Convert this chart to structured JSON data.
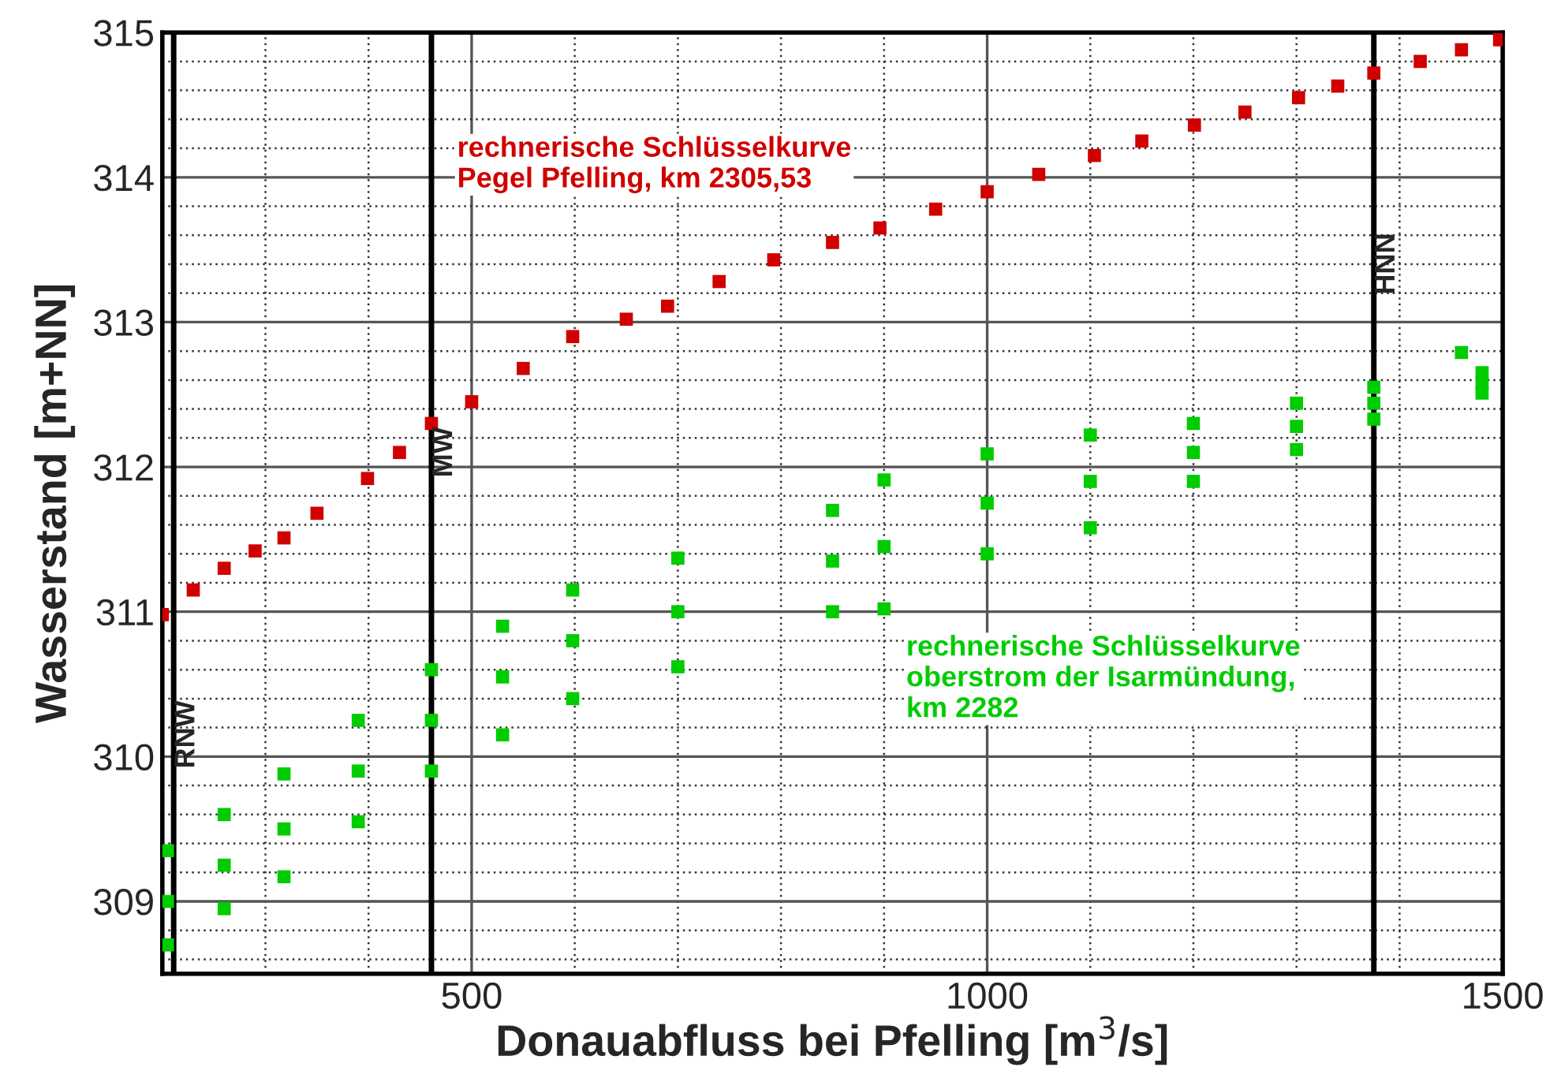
{
  "chart_data": {
    "type": "scatter",
    "xlabel": "Donauabfluss bei Pfelling [m$^{3}$/s]",
    "ylabel": "Wasserstand [m+NN]",
    "xlim": [
      200,
      1500
    ],
    "xticks": [
      {
        "value": 300,
        "label": null
      },
      {
        "value": 400,
        "label": null
      },
      500,
      {
        "value": 600,
        "label": null
      },
      {
        "value": 700,
        "label": null
      },
      {
        "value": 800,
        "label": null
      },
      {
        "value": 900,
        "label": null
      },
      1000,
      {
        "value": 1100,
        "label": null
      },
      {
        "value": 1200,
        "label": null
      },
      {
        "value": 1300,
        "label": null
      },
      {
        "value": 1400,
        "label": null
      },
      1500
    ],
    "ylim": [
      308.5,
      315
    ],
    "yticks": [
      {
        "value": 308.6,
        "label": null
      },
      {
        "value": 308.8,
        "label": null
      },
      309,
      {
        "value": 309.2,
        "label": null
      },
      {
        "value": 309.4,
        "label": null
      },
      {
        "value": 309.6,
        "label": null
      },
      {
        "value": 309.8,
        "label": null
      },
      310,
      {
        "value": 310.2,
        "label": null
      },
      {
        "value": 310.4,
        "label": null
      },
      {
        "value": 310.6,
        "label": null
      },
      {
        "value": 310.8,
        "label": null
      },
      311,
      {
        "value": 311.2,
        "label": null
      },
      {
        "value": 311.4,
        "label": null
      },
      {
        "value": 311.6,
        "label": null
      },
      {
        "value": 311.8,
        "label": null
      },
      312,
      {
        "value": 312.2,
        "label": null
      },
      {
        "value": 312.4,
        "label": null
      },
      {
        "value": 312.6,
        "label": null
      },
      {
        "value": 312.8,
        "label": null
      },
      313,
      {
        "value": 313.2,
        "label": null
      },
      {
        "value": 313.4,
        "label": null
      },
      {
        "value": 313.6,
        "label": null
      },
      {
        "value": 313.8,
        "label": null
      },
      314,
      {
        "value": 314.2,
        "label": null
      },
      {
        "value": 314.4,
        "label": null
      },
      {
        "value": 314.6,
        "label": null
      },
      {
        "value": 314.8,
        "label": null
      },
      315
    ],
    "grid": true,
    "marker": "square",
    "series": [
      {
        "color": "#d00000",
        "x": [
          200,
          230,
          260,
          290,
          318,
          350,
          399,
          430,
          461,
          500,
          550,
          598,
          650,
          690,
          740,
          793,
          850,
          896,
          950,
          1000,
          1050,
          1104,
          1150,
          1201,
          1250,
          1302,
          1340,
          1375,
          1420,
          1460,
          1497
        ],
        "values": [
          310.98,
          311.15,
          311.3,
          311.42,
          311.51,
          311.68,
          311.92,
          312.1,
          312.3,
          312.45,
          312.68,
          312.9,
          313.02,
          313.11,
          313.28,
          313.43,
          313.55,
          313.65,
          313.78,
          313.9,
          314.02,
          314.15,
          314.25,
          314.36,
          314.45,
          314.55,
          314.63,
          314.72,
          314.8,
          314.88,
          314.95
        ]
      },
      {
        "color": "#00cc00",
        "x": [
          205,
          205,
          205,
          260,
          260,
          260,
          318,
          318,
          318,
          390,
          390,
          390,
          461,
          461,
          461,
          530,
          530,
          530,
          598,
          598,
          598,
          700,
          700,
          700,
          850,
          850,
          850,
          900,
          900,
          900,
          1000,
          1000,
          1000,
          1100,
          1100,
          1100,
          1200,
          1200,
          1200,
          1300,
          1300,
          1300,
          1375,
          1375,
          1375,
          1460,
          1480,
          1480,
          1480
        ],
        "values": [
          309.35,
          309.0,
          308.7,
          309.6,
          309.25,
          308.95,
          309.88,
          309.5,
          309.17,
          310.25,
          309.9,
          309.55,
          310.6,
          310.25,
          309.9,
          310.9,
          310.55,
          310.15,
          311.15,
          310.8,
          310.4,
          311.37,
          311.0,
          310.62,
          311.7,
          311.35,
          311.0,
          311.91,
          311.45,
          311.02,
          312.09,
          311.75,
          311.4,
          312.22,
          311.9,
          311.58,
          312.3,
          312.1,
          311.9,
          312.44,
          312.28,
          312.12,
          312.55,
          312.44,
          312.33,
          312.79,
          312.65,
          312.58,
          312.51
        ]
      }
    ],
    "ref_lines": [
      {
        "axis": "x",
        "value": 211,
        "label": "RNW"
      },
      {
        "axis": "x",
        "value": 461,
        "label": "MW"
      },
      {
        "axis": "x",
        "value": 1375,
        "label": "HNN"
      }
    ],
    "annotations": [
      "rechnerische Schlüsselkurve\nPegel Pfelling, km 2305,53",
      "rechnerische Schlüsselkurve\noberstrom der Isarmündung,\nkm 2282"
    ]
  }
}
